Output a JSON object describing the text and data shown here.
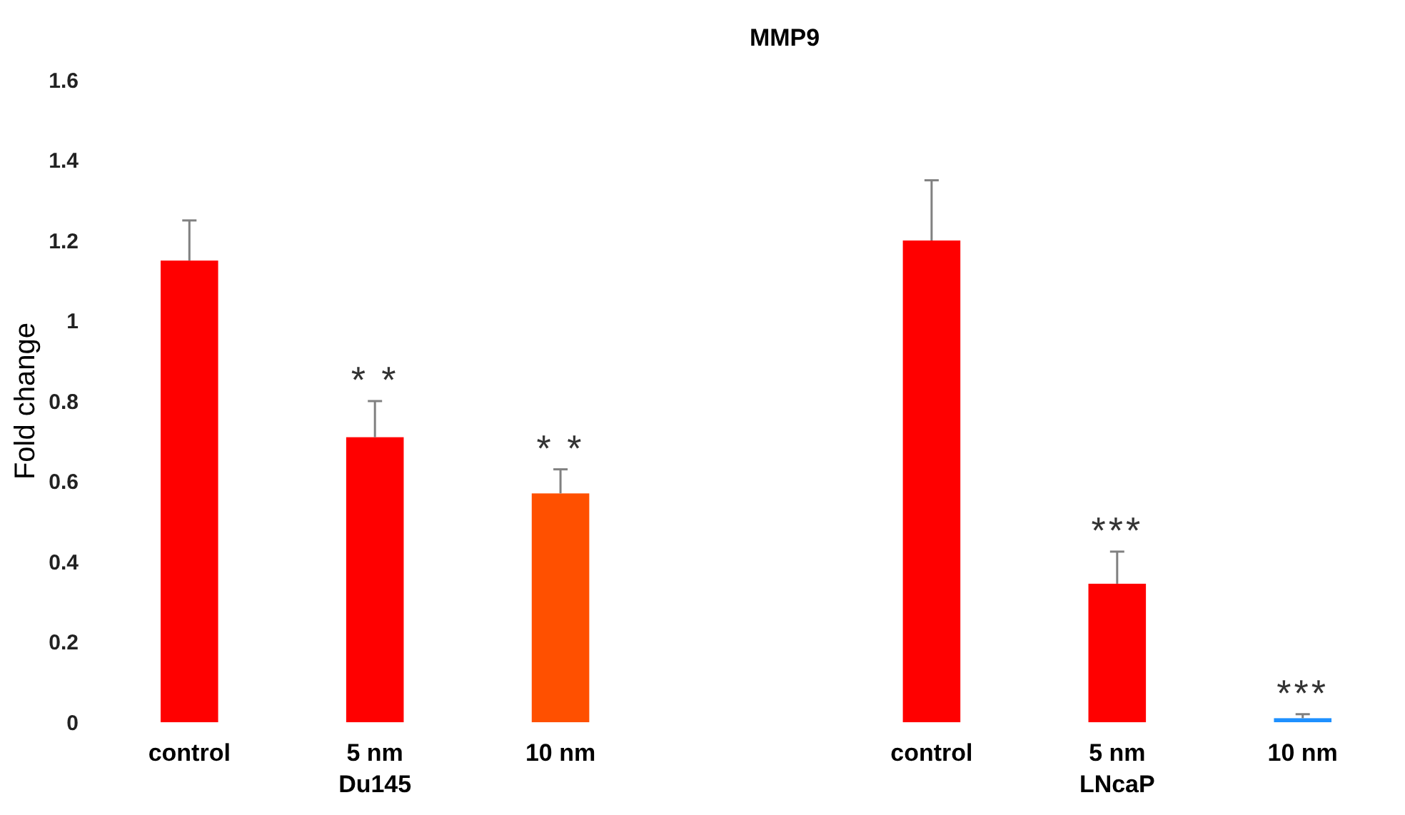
{
  "chart_data": {
    "type": "bar",
    "title": "MMP9",
    "ylabel": "Fold change",
    "categories": [
      "control",
      "5 nm",
      "10 nm",
      null,
      "control",
      "5 nm",
      "10 nm"
    ],
    "values": [
      1.15,
      0.71,
      0.57,
      null,
      1.2,
      0.345,
      0.01
    ],
    "colors": [
      "#ff0000",
      "#ff0000",
      "#ff5000",
      null,
      "#ff0000",
      "#ff0000",
      "#1e90ff"
    ],
    "errors": [
      0.1,
      0.09,
      0.06,
      null,
      0.15,
      0.08,
      0.01
    ],
    "value_labels": [
      null,
      "* *",
      "* *",
      null,
      null,
      "***",
      "***"
    ],
    "annotations": [
      "Du145",
      "LNcaP"
    ],
    "ylim": [
      0,
      1.6
    ],
    "yticks": [
      0,
      0.2,
      0.4,
      0.6,
      0.8,
      1,
      1.2,
      1.4,
      1.6
    ]
  }
}
